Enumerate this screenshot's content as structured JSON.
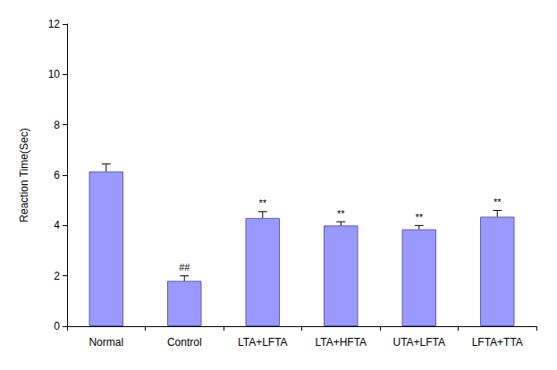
{
  "chart_data": {
    "type": "bar",
    "y_label": "Reaction Time(Sec)",
    "categories": [
      "Normal",
      "Control",
      "LTA+LFTA",
      "LTA+HFTA",
      "UTA+LFTA",
      "LFTA+TTA"
    ],
    "values": [
      6.15,
      1.8,
      4.3,
      4.0,
      3.85,
      4.35
    ],
    "errors": [
      0.3,
      0.2,
      0.25,
      0.15,
      0.15,
      0.25
    ],
    "annotations": [
      {
        "category": "Control",
        "text": "##"
      },
      {
        "category": "LTA+LFTA",
        "text": "**"
      },
      {
        "category": "LTA+HFTA",
        "text": "**"
      },
      {
        "category": "UTA+LFTA",
        "text": "**"
      },
      {
        "category": "LFTA+TTA",
        "text": "**"
      }
    ],
    "color": "#9999ff",
    "ylim": [
      0,
      12
    ],
    "yticks": [
      0,
      2,
      4,
      6,
      8,
      10,
      12
    ],
    "grid": false
  }
}
